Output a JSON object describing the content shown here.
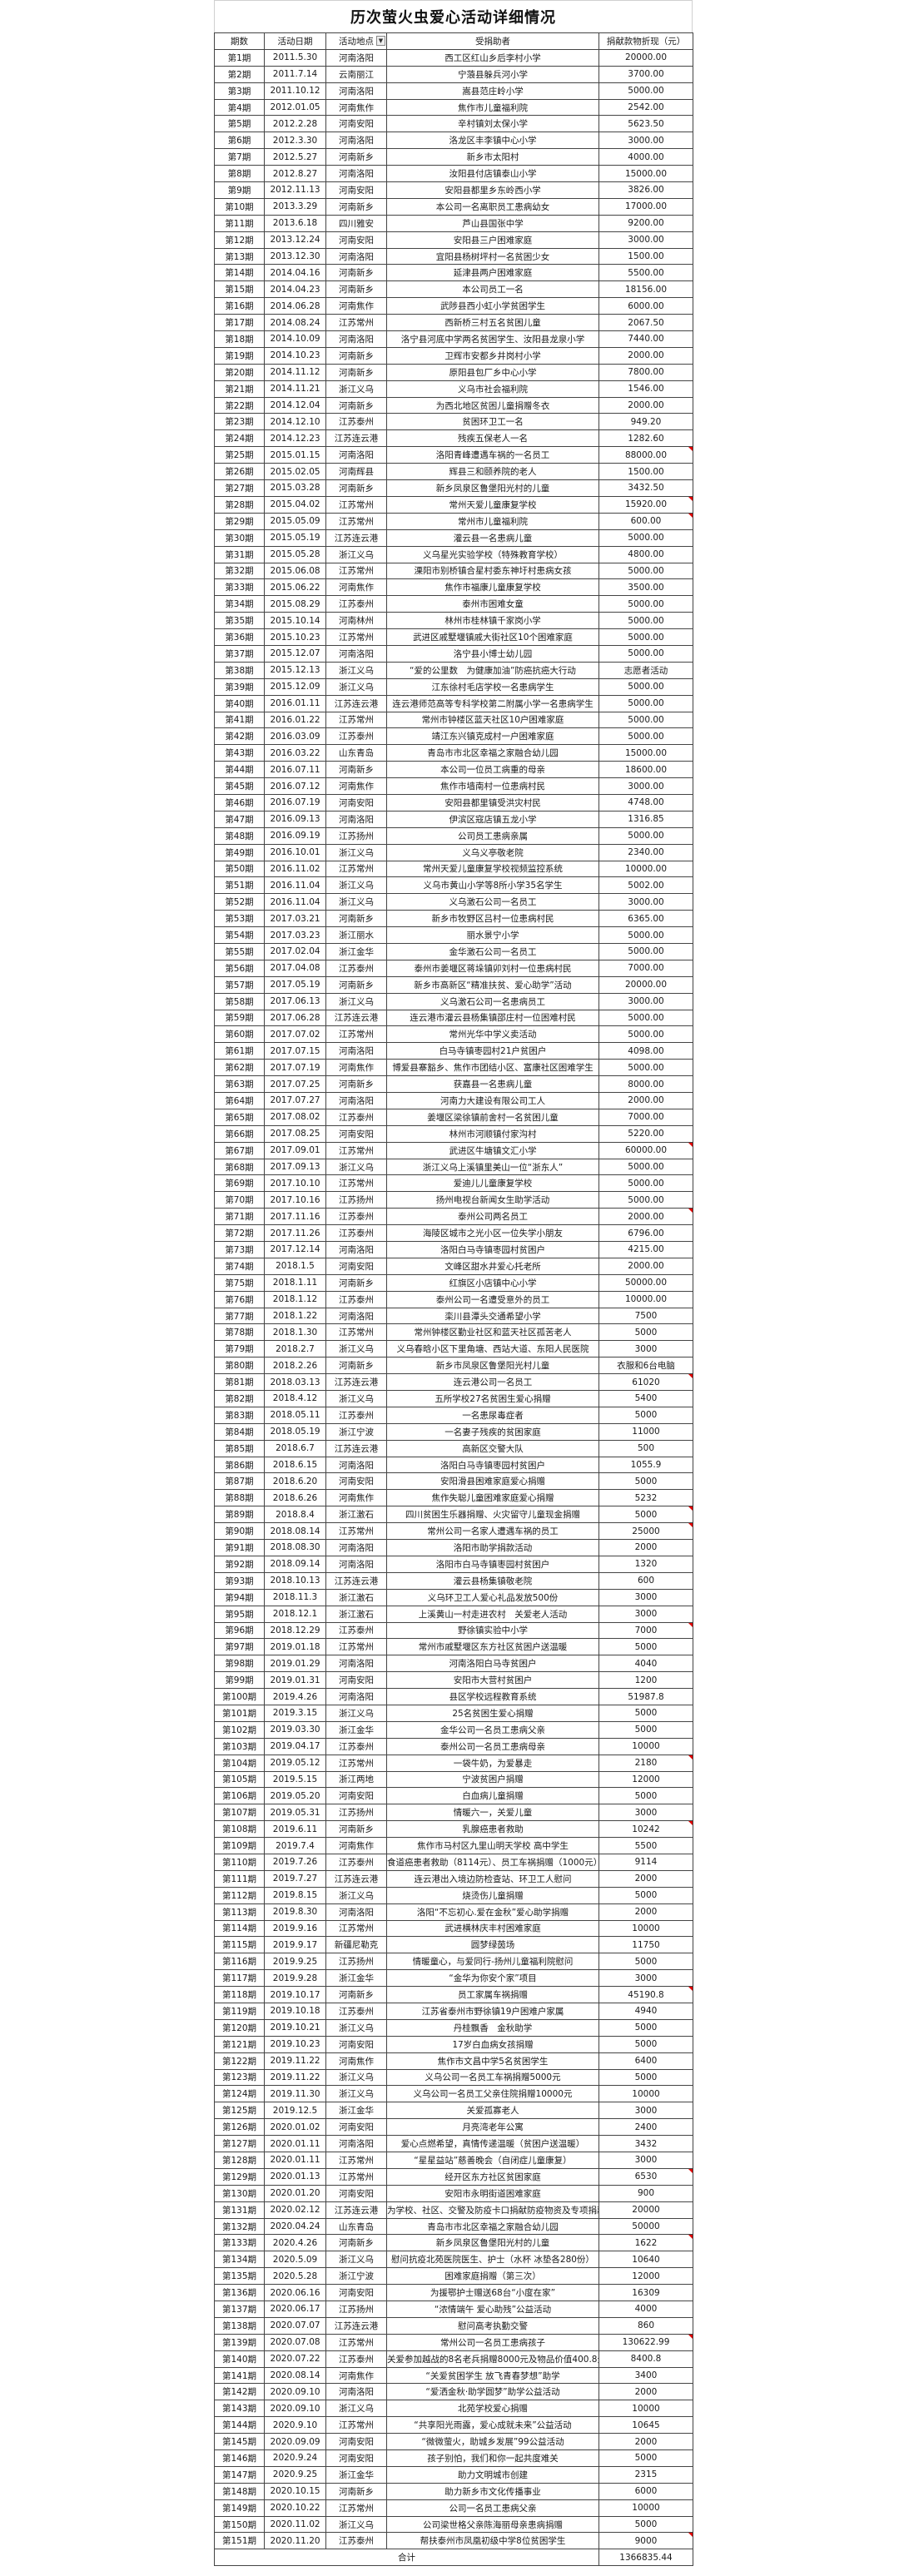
{
  "title": "历次萤火虫爱心活动详细情况",
  "columns": [
    "期数",
    "活动日期",
    "活动地点",
    "受捐助者",
    "捐献款物折现（元）"
  ],
  "filter_icon": "dropdown-filter-icon",
  "comment_marker_color": "#e00000",
  "rows": [
    [
      "第1期",
      "2011.5.30",
      "河南洛阳",
      "西工区红山乡后李村小学",
      "20000.00"
    ],
    [
      "第2期",
      "2011.7.14",
      "云南丽江",
      "宁蒗县躲兵河小学",
      "3700.00"
    ],
    [
      "第3期",
      "2011.10.12",
      "河南洛阳",
      "嵩县范庄岭小学",
      "5000.00"
    ],
    [
      "第4期",
      "2012.01.05",
      "河南焦作",
      "焦作市儿童福利院",
      "2542.00"
    ],
    [
      "第5期",
      "2012.2.28",
      "河南安阳",
      "辛村镇刘太保小学",
      "5623.50"
    ],
    [
      "第6期",
      "2012.3.30",
      "河南洛阳",
      "洛龙区丰李镇中心小学",
      "3000.00"
    ],
    [
      "第7期",
      "2012.5.27",
      "河南新乡",
      "新乡市太阳村",
      "4000.00"
    ],
    [
      "第8期",
      "2012.8.27",
      "河南洛阳",
      "汝阳县付店镇泰山小学",
      "15000.00"
    ],
    [
      "第9期",
      "2012.11.13",
      "河南安阳",
      "安阳县都里乡东岭西小学",
      "3826.00"
    ],
    [
      "第10期",
      "2013.3.29",
      "河南新乡",
      "本公司一名离职员工患病幼女",
      "17000.00"
    ],
    [
      "第11期",
      "2013.6.18",
      "四川雅安",
      "芦山县国张中学",
      "9200.00"
    ],
    [
      "第12期",
      "2013.12.24",
      "河南安阳",
      "安阳县三户困难家庭",
      "3000.00"
    ],
    [
      "第13期",
      "2013.12.30",
      "河南洛阳",
      "宜阳县杨树坪村一名贫困少女",
      "1500.00"
    ],
    [
      "第14期",
      "2014.04.16",
      "河南新乡",
      "延津县两户困难家庭",
      "5500.00"
    ],
    [
      "第15期",
      "2014.04.23",
      "河南新乡",
      "本公司员工一名",
      "18156.00"
    ],
    [
      "第16期",
      "2014.06.28",
      "河南焦作",
      "武陟县西小虹小学贫困学生",
      "6000.00"
    ],
    [
      "第17期",
      "2014.08.24",
      "江苏常州",
      "西新桥三村五名贫困儿童",
      "2067.50"
    ],
    [
      "第18期",
      "2014.10.09",
      "河南洛阳",
      "洛宁县河底中学两名贫困学生、汝阳县龙泉小学",
      "7440.00"
    ],
    [
      "第19期",
      "2014.10.23",
      "河南新乡",
      "卫辉市安都乡井岗村小学",
      "2000.00"
    ],
    [
      "第20期",
      "2014.11.12",
      "河南新乡",
      "原阳县包厂乡中心小学",
      "7800.00"
    ],
    [
      "第21期",
      "2014.11.21",
      "浙江义乌",
      "义乌市社会福利院",
      "1546.00"
    ],
    [
      "第22期",
      "2014.12.04",
      "河南新乡",
      "为西北地区贫困儿童捐赠冬衣",
      "2000.00"
    ],
    [
      "第23期",
      "2014.12.10",
      "江苏泰州",
      "贫困环卫工一名",
      "949.20"
    ],
    [
      "第24期",
      "2014.12.23",
      "江苏连云港",
      "残疾五保老人一名",
      "1282.60"
    ],
    [
      "第25期",
      "2015.01.15",
      "河南洛阳",
      "洛阳青峰遭遇车祸的一名员工",
      "88000.00"
    ],
    [
      "第26期",
      "2015.02.05",
      "河南辉县",
      "辉县三和颐养院的老人",
      "1500.00"
    ],
    [
      "第27期",
      "2015.03.28",
      "河南新乡",
      "新乡凤泉区鲁堡阳光村的儿童",
      "3432.50"
    ],
    [
      "第28期",
      "2015.04.02",
      "江苏常州",
      "常州天爱儿童康复学校",
      "15920.00"
    ],
    [
      "第29期",
      "2015.05.09",
      "江苏常州",
      "常州市儿童福利院",
      "600.00"
    ],
    [
      "第30期",
      "2015.05.19",
      "江苏连云港",
      "灌云县一名患病儿童",
      "5000.00"
    ],
    [
      "第31期",
      "2015.05.28",
      "浙江义乌",
      "义乌星光实验学校（特殊教育学校）",
      "4800.00"
    ],
    [
      "第32期",
      "2015.06.08",
      "江苏常州",
      "溧阳市别桥镇合星村委东神圩村患病女孩",
      "5000.00"
    ],
    [
      "第33期",
      "2015.06.22",
      "河南焦作",
      "焦作市福康儿童康复学校",
      "3500.00"
    ],
    [
      "第34期",
      "2015.08.29",
      "江苏泰州",
      "泰州市困难女童",
      "5000.00"
    ],
    [
      "第35期",
      "2015.10.14",
      "河南林州",
      "林州市桂林镇千家岗小学",
      "5000.00"
    ],
    [
      "第36期",
      "2015.10.23",
      "江苏常州",
      "武进区戚墅堰镇戚大街社区10个困难家庭",
      "5000.00"
    ],
    [
      "第37期",
      "2015.12.07",
      "河南洛阳",
      "洛宁县小博士幼儿园",
      "5000.00"
    ],
    [
      "第38期",
      "2015.12.13",
      "浙江义乌",
      "“爱的公里数　为健康加油”防癌抗癌大行动",
      "志愿者活动"
    ],
    [
      "第39期",
      "2015.12.09",
      "浙江义乌",
      "江东徐村毛店学校一名患病学生",
      "5000.00"
    ],
    [
      "第40期",
      "2016.01.11",
      "江苏连云港",
      "连云港师范高等专科学校第二附属小学一名患病学生",
      "5000.00"
    ],
    [
      "第41期",
      "2016.01.22",
      "江苏常州",
      "常州市钟楼区蓝天社区10户困难家庭",
      "5000.00"
    ],
    [
      "第42期",
      "2016.03.09",
      "江苏泰州",
      "靖江东兴镇克成村一户困难家庭",
      "5000.00"
    ],
    [
      "第43期",
      "2016.03.22",
      "山东青岛",
      "青岛市市北区幸福之家融合幼儿园",
      "15000.00"
    ],
    [
      "第44期",
      "2016.07.11",
      "河南新乡",
      "本公司一位员工病重的母亲",
      "18600.00"
    ],
    [
      "第45期",
      "2016.07.12",
      "河南焦作",
      "焦作市墙南村一位患病村民",
      "3000.00"
    ],
    [
      "第46期",
      "2016.07.19",
      "河南安阳",
      "安阳县都里镇受洪灾村民",
      "4748.00"
    ],
    [
      "第47期",
      "2016.09.13",
      "河南洛阳",
      "伊滨区寇店镇五龙小学",
      "1316.85"
    ],
    [
      "第48期",
      "2016.09.19",
      "江苏扬州",
      "公司员工患病亲属",
      "5000.00"
    ],
    [
      "第49期",
      "2016.10.01",
      "浙江义乌",
      "义乌义亭敬老院",
      "2340.00"
    ],
    [
      "第50期",
      "2016.11.02",
      "江苏常州",
      "常州天爱儿童康复学校视频监控系统",
      "10000.00"
    ],
    [
      "第51期",
      "2016.11.04",
      "浙江义乌",
      "义乌市黄山小学等8所小学35名学生",
      "5002.00"
    ],
    [
      "第52期",
      "2016.11.04",
      "浙江义乌",
      "义乌激石公司一名员工",
      "3000.00"
    ],
    [
      "第53期",
      "2017.03.21",
      "河南新乡",
      "新乡市牧野区吕村一位患病村民",
      "6365.00"
    ],
    [
      "第54期",
      "2017.03.23",
      "浙江丽水",
      "丽水景宁小学",
      "5000.00"
    ],
    [
      "第55期",
      "2017.02.04",
      "浙江金华",
      "金华激石公司一名员工",
      "5000.00"
    ],
    [
      "第56期",
      "2017.04.08",
      "江苏泰州",
      "泰州市姜堰区蒋垛镇卯刘村一位患病村民",
      "7000.00"
    ],
    [
      "第57期",
      "2017.05.19",
      "河南新乡",
      "新乡市高新区“精准扶贫、爱心助学”活动",
      "20000.00"
    ],
    [
      "第58期",
      "2017.06.13",
      "浙江义乌",
      "义乌激石公司一名患病员工",
      "3000.00"
    ],
    [
      "第59期",
      "2017.06.28",
      "江苏连云港",
      "连云港市灌云县杨集镇邵庄村一位困难村民",
      "5000.00"
    ],
    [
      "第60期",
      "2017.07.02",
      "江苏常州",
      "常州光华中学义卖活动",
      "5000.00"
    ],
    [
      "第61期",
      "2017.07.15",
      "河南洛阳",
      "白马寺镇枣园村21户贫困户",
      "4098.00"
    ],
    [
      "第62期",
      "2017.07.19",
      "河南焦作",
      "博爱县寨豁乡、焦作市团结小区、富康社区困难学生",
      "5000.00"
    ],
    [
      "第63期",
      "2017.07.25",
      "河南新乡",
      "获嘉县一名患病儿童",
      "8000.00"
    ],
    [
      "第64期",
      "2017.07.27",
      "河南洛阳",
      "河南力大建设有限公司工人",
      "2000.00"
    ],
    [
      "第65期",
      "2017.08.02",
      "江苏泰州",
      "姜堰区梁徐镇前舍村一名贫困儿童",
      "7000.00"
    ],
    [
      "第66期",
      "2017.08.25",
      "河南安阳",
      "林州市河顺镇付家沟村",
      "5220.00"
    ],
    [
      "第67期",
      "2017.09.01",
      "江苏常州",
      "武进区牛塘镇文汇小学",
      "60000.00"
    ],
    [
      "第68期",
      "2017.09.13",
      "浙江义乌",
      "浙江义乌上溪镇里美山一位“浙东人”",
      "5000.00"
    ],
    [
      "第69期",
      "2017.10.10",
      "江苏常州",
      "爱迪儿儿童康复学校",
      "5000.00"
    ],
    [
      "第70期",
      "2017.10.16",
      "江苏扬州",
      "扬州电视台新闻女生助学活动",
      "5000.00"
    ],
    [
      "第71期",
      "2017.11.16",
      "江苏泰州",
      "泰州公司两名员工",
      "2000.00"
    ],
    [
      "第72期",
      "2017.11.26",
      "江苏泰州",
      "海陵区城市之光小区一位失学小朋友",
      "6796.00"
    ],
    [
      "第73期",
      "2017.12.14",
      "河南洛阳",
      "洛阳白马寺镇枣园村贫困户",
      "4215.00"
    ],
    [
      "第74期",
      "2018.1.5",
      "河南安阳",
      "文峰区甜水井爱心托老所",
      "2000.00"
    ],
    [
      "第75期",
      "2018.1.11",
      "河南新乡",
      "红旗区小店镇中心小学",
      "50000.00"
    ],
    [
      "第76期",
      "2018.1.12",
      "江苏泰州",
      "泰州公司一名遭受意外的员工",
      "10000.00"
    ],
    [
      "第77期",
      "2018.1.22",
      "河南洛阳",
      "栾川县潭头交通希望小学",
      "7500"
    ],
    [
      "第78期",
      "2018.1.30",
      "江苏常州",
      "常州钟楼区勤业社区和蓝天社区孤苦老人",
      "5000"
    ],
    [
      "第79期",
      "2018.2.7",
      "浙江义乌",
      "义乌春晗小区下里角塘、西站大道、东阳人民医院",
      "3000"
    ],
    [
      "第80期",
      "2018.2.26",
      "河南新乡",
      "新乡市凤泉区鲁堡阳光村儿童",
      "衣服和6台电脑"
    ],
    [
      "第81期",
      "2018.03.13",
      "江苏连云港",
      "连云港公司一名员工",
      "61020"
    ],
    [
      "第82期",
      "2018.4.12",
      "浙江义乌",
      "五所学校27名贫困生爱心捐赠",
      "5400"
    ],
    [
      "第83期",
      "2018.05.11",
      "江苏泰州",
      "一名患尿毒症者",
      "5000"
    ],
    [
      "第84期",
      "2018.05.19",
      "浙江宁波",
      "一名妻子残疾的贫困家庭",
      "11000"
    ],
    [
      "第85期",
      "2018.6.7",
      "江苏连云港",
      "高新区交警大队",
      "500"
    ],
    [
      "第86期",
      "2018.6.15",
      "河南洛阳",
      "洛阳白马寺镇枣园村贫困户",
      "1055.9"
    ],
    [
      "第87期",
      "2018.6.20",
      "河南安阳",
      "安阳滑县困难家庭爱心捐赠",
      "5000"
    ],
    [
      "第88期",
      "2018.6.26",
      "河南焦作",
      "焦作失聪儿童困难家庭爱心捐赠",
      "5232"
    ],
    [
      "第89期",
      "2018.8.4",
      "浙江激石",
      "四川贫困生乐器捐赠、火灾留守儿童现金捐赠",
      "5000"
    ],
    [
      "第90期",
      "2018.08.14",
      "江苏常州",
      "常州公司一名家人遭遇车祸的员工",
      "25000"
    ],
    [
      "第91期",
      "2018.08.30",
      "河南洛阳",
      "洛阳市助学捐款活动",
      "2000"
    ],
    [
      "第92期",
      "2018.09.14",
      "河南洛阳",
      "洛阳市白马寺镇枣园村贫困户",
      "1320"
    ],
    [
      "第93期",
      "2018.10.13",
      "江苏连云港",
      "灌云县杨集镇敬老院",
      "600"
    ],
    [
      "第94期",
      "2018.11.3",
      "浙江激石",
      "义乌环卫工人爱心礼品发放500份",
      "3000"
    ],
    [
      "第95期",
      "2018.12.1",
      "浙江激石",
      "上溪黄山一村走进农村　关爱老人活动",
      "3000"
    ],
    [
      "第96期",
      "2018.12.29",
      "江苏泰州",
      "野徐镇实验中小学",
      "7000"
    ],
    [
      "第97期",
      "2019.01.18",
      "江苏常州",
      "常州市戚墅堰区东方社区贫困户送温暖",
      "5000"
    ],
    [
      "第98期",
      "2019.01.29",
      "河南洛阳",
      "河南洛阳白马寺贫困户",
      "4040"
    ],
    [
      "第99期",
      "2019.01.31",
      "河南安阳",
      "安阳市大营村贫困户",
      "1200"
    ],
    [
      "第100期",
      "2019.4.26",
      "河南洛阳",
      "县区学校远程教育系统",
      "51987.8"
    ],
    [
      "第101期",
      "2019.3.15",
      "浙江义乌",
      "25名贫困生爱心捐赠",
      "5000"
    ],
    [
      "第102期",
      "2019.03.30",
      "浙江金华",
      "金华公司一名员工患病父亲",
      "5000"
    ],
    [
      "第103期",
      "2019.04.17",
      "江苏泰州",
      "泰州公司一名员工患病母亲",
      "10000"
    ],
    [
      "第104期",
      "2019.05.12",
      "江苏常州",
      "一袋牛奶，为爱暴走",
      "2180"
    ],
    [
      "第105期",
      "2019.5.15",
      "浙江两地",
      "宁波贫困户捐赠",
      "12000"
    ],
    [
      "第106期",
      "2019.05.20",
      "河南安阳",
      "白血病儿童捐赠",
      "5000"
    ],
    [
      "第107期",
      "2019.05.31",
      "江苏扬州",
      "情暖六一，关爱儿童",
      "3000"
    ],
    [
      "第108期",
      "2019.6.11",
      "河南新乡",
      "乳腺癌患者救助",
      "10242"
    ],
    [
      "第109期",
      "2019.7.4",
      "河南焦作",
      "焦作市马村区九里山明天学校 高中学生",
      "5500"
    ],
    [
      "第110期",
      "2019.7.26",
      "江苏泰州",
      "食道癌患者救助（8114元）、员工车祸捐赠（1000元）",
      "9114"
    ],
    [
      "第111期",
      "2019.7.27",
      "江苏连云港",
      "连云港出入境边防检查站、环卫工人慰问",
      "2000"
    ],
    [
      "第112期",
      "2019.8.15",
      "浙江义乌",
      "烧烫伤儿童捐赠",
      "5000"
    ],
    [
      "第113期",
      "2019.8.30",
      "河南洛阳",
      "洛阳“不忘初心.爱在金秋”爱心助学捐赠",
      "2000"
    ],
    [
      "第114期",
      "2019.9.16",
      "江苏常州",
      "武进横林庆丰村困难家庭",
      "10000"
    ],
    [
      "第115期",
      "2019.9.17",
      "新疆尼勒克",
      "圆梦绿茵场",
      "11750"
    ],
    [
      "第116期",
      "2019.9.25",
      "江苏扬州",
      "情暖童心，与爱同行-扬州儿童福利院慰问",
      "5000"
    ],
    [
      "第117期",
      "2019.9.28",
      "浙江金华",
      "“金华为你安个家”项目",
      "3000"
    ],
    [
      "第118期",
      "2019.10.17",
      "河南新乡",
      "员工家属车祸捐赠",
      "45190.8"
    ],
    [
      "第119期",
      "2019.10.18",
      "江苏泰州",
      "江苏省泰州市野徐镇19户困难户家属",
      "4940"
    ],
    [
      "第120期",
      "2019.10.21",
      "浙江义乌",
      "丹桂飘香　金秋助学",
      "5000"
    ],
    [
      "第121期",
      "2019.10.23",
      "河南安阳",
      "17岁白血病女孩捐赠",
      "5000"
    ],
    [
      "第122期",
      "2019.11.22",
      "河南焦作",
      "焦作市文昌中学5名贫困学生",
      "6400"
    ],
    [
      "第123期",
      "2019.11.22",
      "浙江义乌",
      "义乌公司一名员工车祸捐赠5000元",
      "5000"
    ],
    [
      "第124期",
      "2019.11.30",
      "浙江义乌",
      "义乌公司一名员工父亲住院捐赠10000元",
      "10000"
    ],
    [
      "第125期",
      "2019.12.5",
      "浙江金华",
      "关爱孤寡老人",
      "3000"
    ],
    [
      "第126期",
      "2020.01.02",
      "河南安阳",
      "月亮湾老年公寓",
      "2400"
    ],
    [
      "第127期",
      "2020.01.11",
      "河南洛阳",
      "爱心点燃希望，真情传递温暖（贫困户送温暖）",
      "3432"
    ],
    [
      "第128期",
      "2020.01.11",
      "江苏常州",
      "“星星益站”慈善晚会（自闭症儿童康复）",
      "3000"
    ],
    [
      "第129期",
      "2020.01.13",
      "江苏常州",
      "经开区东方社区贫困家庭",
      "6530"
    ],
    [
      "第130期",
      "2020.01.20",
      "河南安阳",
      "安阳市永明街道困难家庭",
      "900"
    ],
    [
      "第131期",
      "2020.02.12",
      "江苏连云港",
      "为学校、社区、交警及防疫卡口捐献防疫物资及专项捐款",
      "20000"
    ],
    [
      "第132期",
      "2020.04.24",
      "山东青岛",
      "青岛市市北区幸福之家融合幼儿园",
      "50000"
    ],
    [
      "第133期",
      "2020.4.26",
      "河南新乡",
      "新乡凤泉区鲁堡阳光村的儿童",
      "1622"
    ],
    [
      "第134期",
      "2020.5.09",
      "浙江义乌",
      "慰问抗疫北苑医院医生、护士（水杯 冰垫各280份）",
      "10640"
    ],
    [
      "第135期",
      "2020.5.28",
      "浙江宁波",
      "困难家庭捐赠（第三次）",
      "12000"
    ],
    [
      "第136期",
      "2020.06.16",
      "河南安阳",
      "为援鄂护士赠送68台“小度在家”",
      "16309"
    ],
    [
      "第137期",
      "2020.06.17",
      "江苏扬州",
      "“浓情端午 爱心助残”公益活动",
      "4000"
    ],
    [
      "第138期",
      "2020.07.07",
      "江苏连云港",
      "慰问高考执勤交警",
      "860"
    ],
    [
      "第139期",
      "2020.07.08",
      "江苏常州",
      "常州公司一名员工患病孩子",
      "130622.99"
    ],
    [
      "第140期",
      "2020.07.22",
      "江苏泰州",
      "关爱参加越战的8名老兵捐赠8000元及物品价值400.8元",
      "8400.8"
    ],
    [
      "第141期",
      "2020.08.14",
      "河南焦作",
      "“关爱贫困学生 放飞青春梦想”助学",
      "3400"
    ],
    [
      "第142期",
      "2020.09.10",
      "河南洛阳",
      "“爱洒金秋·助学圆梦”助学公益活动",
      "2000"
    ],
    [
      "第143期",
      "2020.09.10",
      "浙江义乌",
      "北苑学校爱心捐赠",
      "10000"
    ],
    [
      "第144期",
      "2020.9.10",
      "江苏常州",
      "“共享阳光雨露，爱心成就未来”公益活动",
      "10645"
    ],
    [
      "第145期",
      "2020.09.09",
      "河南安阳",
      "“微微萤火，助城乡发展”99公益活动",
      "2000"
    ],
    [
      "第146期",
      "2020.9.24",
      "河南安阳",
      "孩子别怕，我们和你一起共度难关",
      "5000"
    ],
    [
      "第147期",
      "2020.9.25",
      "浙江金华",
      "助力文明城市创建",
      "2315"
    ],
    [
      "第148期",
      "2020.10.15",
      "河南新乡",
      "助力新乡市文化传播事业",
      "6000"
    ],
    [
      "第149期",
      "2020.10.22",
      "江苏常州",
      "公司一名员工患病父亲",
      "10000"
    ],
    [
      "第150期",
      "2020.11.02",
      "浙江义乌",
      "公司梁世格父亲陈海丽母亲患病捐赠",
      "5000"
    ],
    [
      "第151期",
      "2020.11.20",
      "江苏泰州",
      "帮扶泰州市凤凰初级中学8位贫困学生",
      "9000"
    ]
  ],
  "rows_with_comment_marker": [
    "第25期",
    "第28期",
    "第29期",
    "第67期",
    "第71期",
    "第81期",
    "第89期",
    "第90期",
    "第96期",
    "第104期",
    "第108期",
    "第118期",
    "第129期",
    "第133期",
    "第139期",
    "第151期"
  ],
  "total": {
    "label": "合计",
    "value": "1366835.44"
  }
}
